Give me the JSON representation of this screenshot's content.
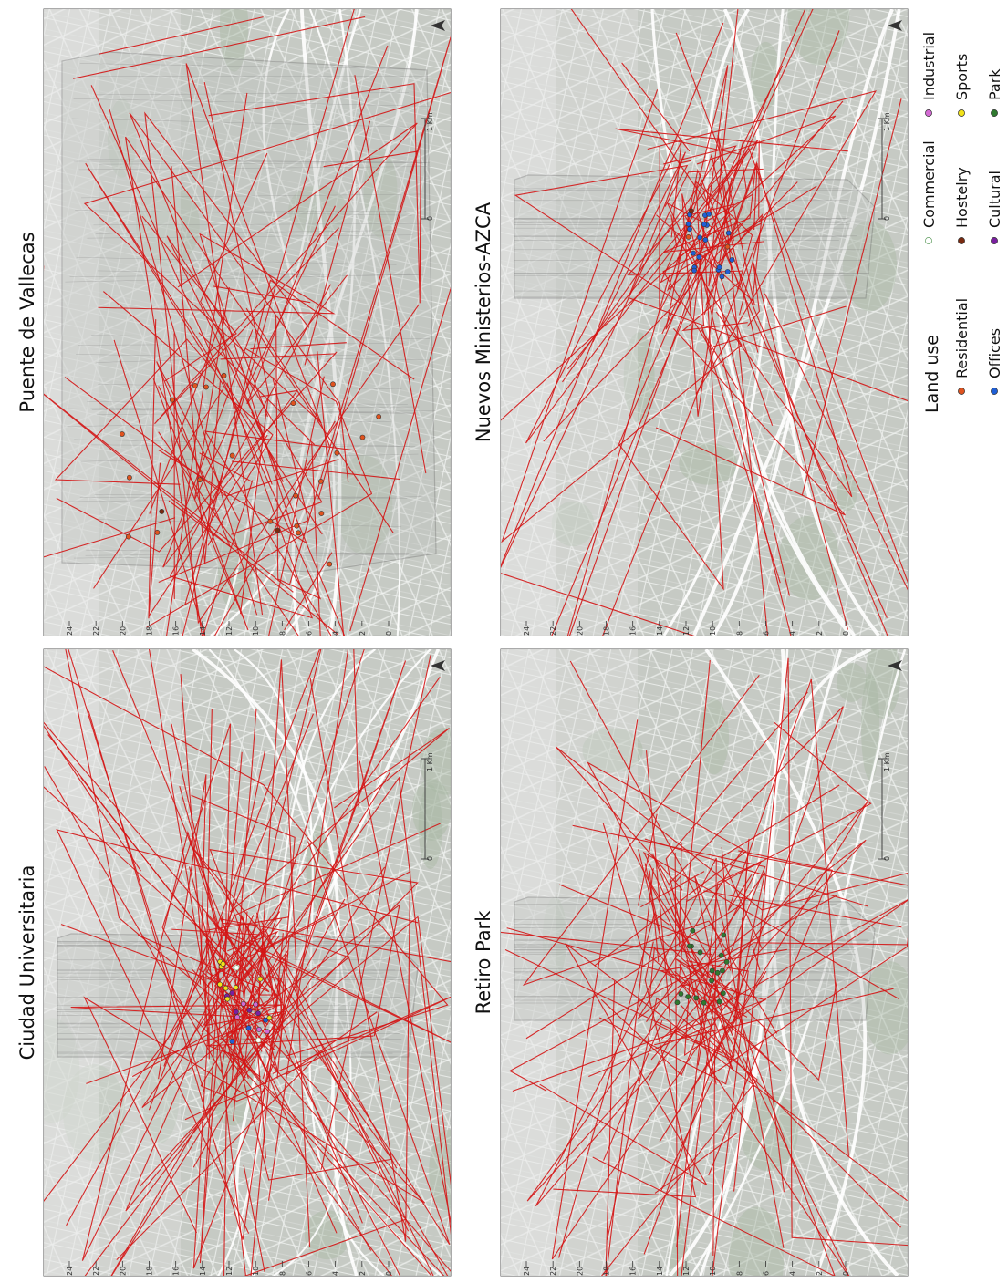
{
  "panels": [
    {
      "id": "vallecas",
      "title": "Puente de Vallecas",
      "yticks": [
        "24",
        "22",
        "20",
        "18",
        "16",
        "14",
        "12",
        "10",
        "8",
        "6",
        "4",
        "2",
        "0"
      ],
      "scale": [
        "0",
        "1 Km"
      ]
    },
    {
      "id": "azca",
      "title": "Nuevos Ministerios-AZCA",
      "yticks": [
        "24",
        "22",
        "20",
        "18",
        "16",
        "14",
        "12",
        "10",
        "8",
        "6",
        "4",
        "2",
        "0"
      ],
      "scale": [
        "0",
        "1 Km"
      ]
    },
    {
      "id": "ciudad",
      "title": "Ciudad Universitaria",
      "yticks": [
        "24",
        "22",
        "20",
        "18",
        "16",
        "14",
        "12",
        "10",
        "8",
        "6",
        "4",
        "2",
        "0"
      ],
      "scale": [
        "0",
        "1 Km"
      ]
    },
    {
      "id": "retiro",
      "title": "Retiro Park",
      "yticks": [
        "24",
        "22",
        "20",
        "18",
        "16",
        "14",
        "12",
        "10",
        "8",
        "6",
        "4",
        "2",
        "0"
      ],
      "scale": [
        "0",
        "1 Km"
      ]
    }
  ],
  "legend": {
    "title": "Land use",
    "items": [
      {
        "label": "Residential",
        "color": "#e0531f",
        "hollow": false
      },
      {
        "label": "Offices",
        "color": "#1f5fd6",
        "hollow": false
      },
      {
        "label": "Commercial",
        "color": "#8fc98f",
        "hollow": true
      },
      {
        "label": "Hostelry",
        "color": "#7a2a10",
        "hollow": false
      },
      {
        "label": "Cultural",
        "color": "#7a1fa0",
        "hollow": false
      },
      {
        "label": "Industrial",
        "color": "#d46ad4",
        "hollow": false
      },
      {
        "label": "Sports",
        "color": "#f2e21a",
        "hollow": false
      },
      {
        "label": "Park",
        "color": "#2f7a2f",
        "hollow": false
      }
    ]
  },
  "colors": {
    "track": "#d41414",
    "map_bg": "#c9ccc7",
    "street": "#f2f4f2",
    "green": "#a9b8a4"
  }
}
